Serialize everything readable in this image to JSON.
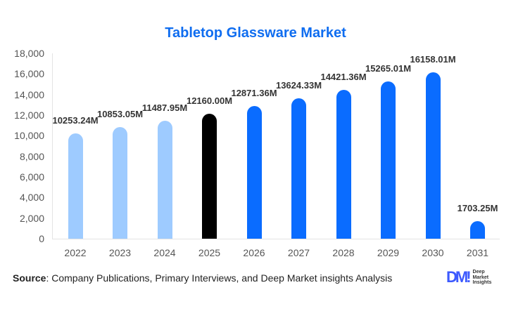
{
  "chart_data": {
    "type": "bar",
    "title": "Tabletop Glassware Market",
    "xlabel": "",
    "ylabel": "",
    "ylim": [
      0,
      18000
    ],
    "yticks": [
      "0",
      "2,000",
      "4,000",
      "6,000",
      "8,000",
      "10,000",
      "12,000",
      "14,000",
      "16,000",
      "18,000"
    ],
    "categories": [
      "2022",
      "2023",
      "2024",
      "2025",
      "2026",
      "2027",
      "2028",
      "2029",
      "2030",
      "2031"
    ],
    "values": [
      10253.24,
      10853.05,
      11487.95,
      12160.0,
      12871.36,
      13624.33,
      14421.36,
      15265.01,
      16158.01,
      1703.25
    ],
    "value_labels": [
      "10253.24M",
      "10853.05M",
      "11487.95M",
      "12160.00M",
      "12871.36M",
      "13624.33M",
      "14421.36M",
      "15265.01M",
      "16158.01M",
      "1703.25M"
    ],
    "bar_colors": [
      "#9ecbff",
      "#9ecbff",
      "#9ecbff",
      "#000000",
      "#0a6cff",
      "#0a6cff",
      "#0a6cff",
      "#0a6cff",
      "#0a6cff",
      "#0a6cff"
    ],
    "grid": false,
    "legend": null
  },
  "colors": {
    "title": "#0f6df0",
    "historical": "#9ecbff",
    "base_year": "#000000",
    "forecast": "#0a6cff"
  },
  "footer": {
    "source_label": "Source",
    "source_text": ": Company Publications, Primary Interviews, and Deep Market insights Analysis",
    "logo_mark": "DM!",
    "logo_line1": "Deep",
    "logo_line2": "Market",
    "logo_line3": "Insights"
  }
}
